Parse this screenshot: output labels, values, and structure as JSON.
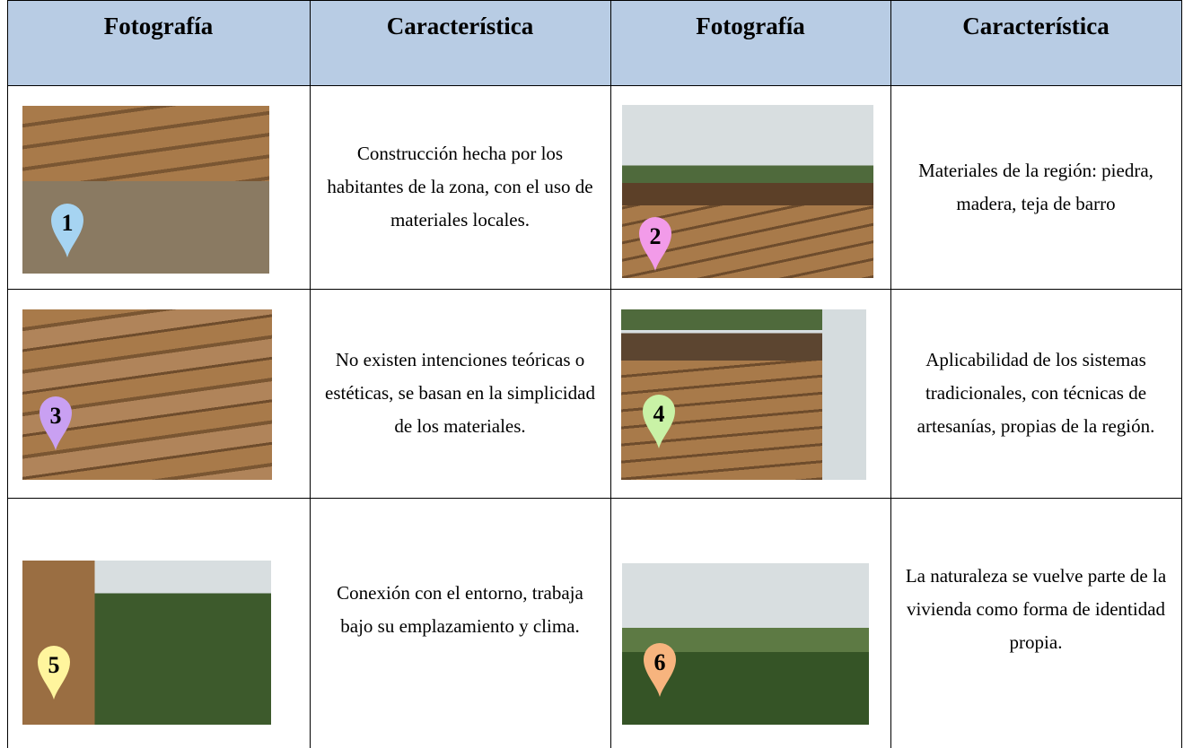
{
  "table": {
    "header": [
      "Fotografía",
      "Característica",
      "Fotografía",
      "Característica"
    ],
    "rows": [
      [
        {
          "marker": "1",
          "text": "Construcción hecha por los habitantes de la zona, con el uso de materiales locales."
        },
        {
          "marker": "2",
          "text": "Materiales de la región: piedra, madera, teja de barro"
        }
      ],
      [
        {
          "marker": "3",
          "text": "No existen intenciones teóricas o estéticas, se basan en la simplicidad de los materiales."
        },
        {
          "marker": "4",
          "text": "Aplicabilidad de los sistemas tradicionales, con técnicas de artesanías, propias de la región."
        }
      ],
      [
        {
          "marker": "5",
          "text": "Conexión con el entorno, trabaja bajo su emplazamiento y clima."
        },
        {
          "marker": "6",
          "text": "La naturaleza se vuelve parte de la vivienda como forma de identidad propia."
        }
      ]
    ]
  }
}
